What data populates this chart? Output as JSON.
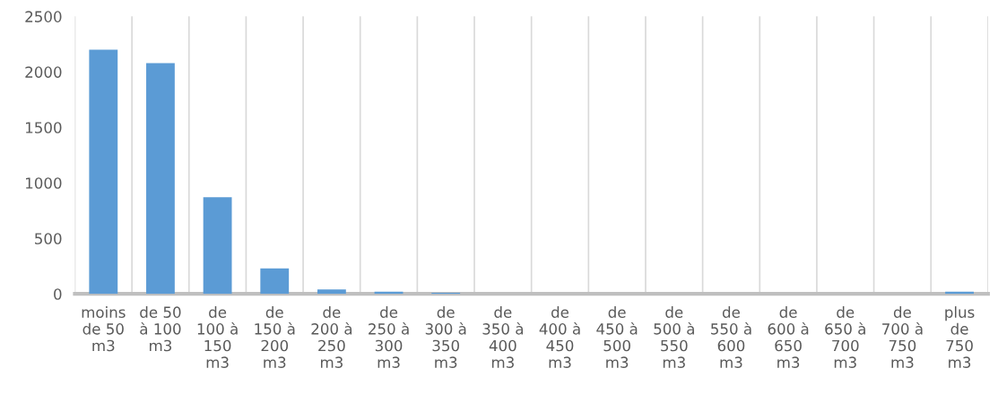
{
  "chart_data": {
    "type": "bar",
    "categories": [
      "moins de 50 m3",
      "de 50 à 100 m3",
      "de 100 à 150 m3",
      "de 150 à 200 m3",
      "de 200 à 250 m3",
      "de 250 à 300 m3",
      "de 300 à 350 m3",
      "de 350 à 400 m3",
      "de 400 à 450 m3",
      "de 450 à 500 m3",
      "de 500 à 550 m3",
      "de 550 à 600 m3",
      "de 600 à 650 m3",
      "de 650 à 700 m3",
      "de 700 à 750 m3",
      "plus de 750 m3"
    ],
    "values": [
      2200,
      2080,
      870,
      230,
      40,
      20,
      10,
      null,
      null,
      null,
      null,
      null,
      null,
      null,
      null,
      20
    ],
    "color": "#5b9bd5",
    "ylim": [
      0,
      2500
    ],
    "yticks": [
      0,
      500,
      1000,
      1500,
      2000,
      2500
    ],
    "grid": "x",
    "legend": false
  }
}
